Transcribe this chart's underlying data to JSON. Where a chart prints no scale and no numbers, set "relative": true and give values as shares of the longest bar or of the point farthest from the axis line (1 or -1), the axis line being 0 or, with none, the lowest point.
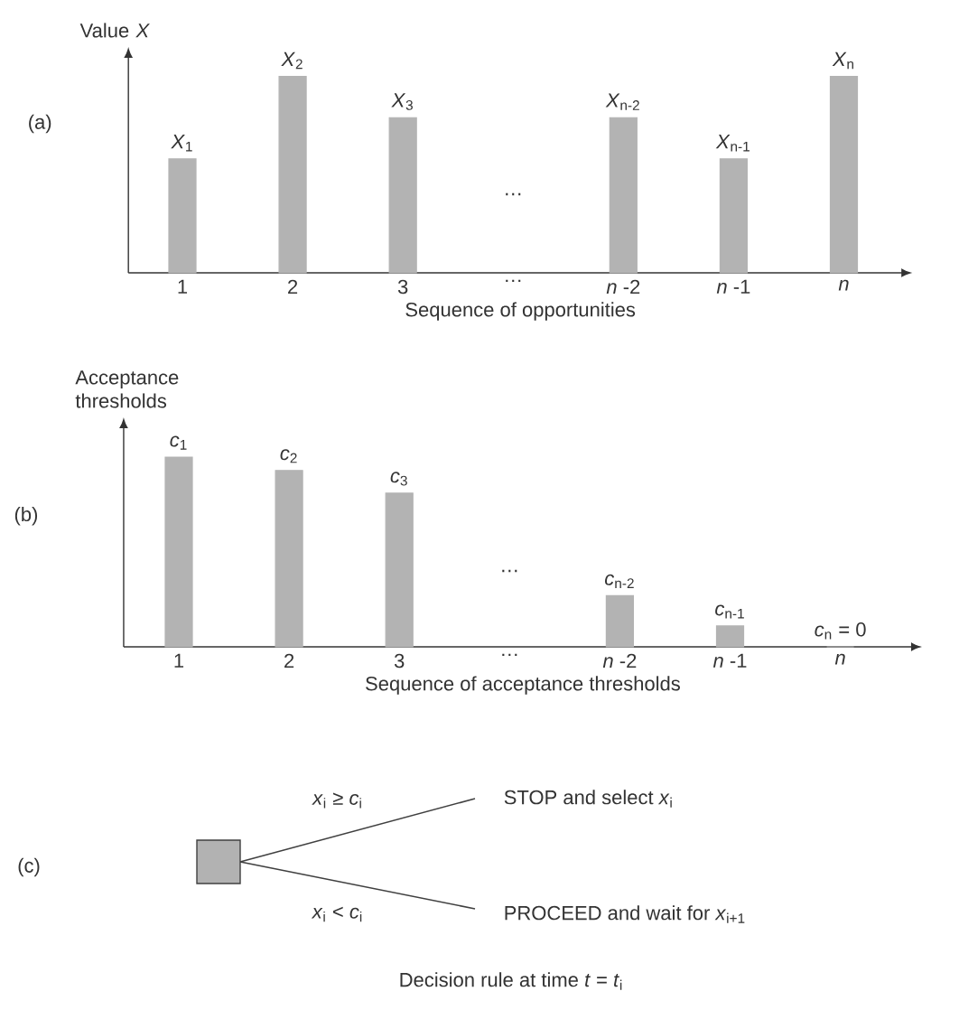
{
  "chart_data": [
    {
      "type": "bar",
      "relative": true,
      "color": "#b3b3b3",
      "ylabel": "Value *X*",
      "xlabel": "Sequence of opportunities",
      "tick_labels": "x",
      "categories": [
        "1",
        "2",
        "3",
        "…",
        "*n* -2",
        "*n* -1",
        "*n*"
      ],
      "values": [
        0.58,
        1,
        0.79,
        null,
        0.79,
        0.58,
        1
      ],
      "annotations": [
        "(a)",
        "…",
        {
          "text": "*X*$_{1}$",
          "x": "1",
          "y": 0.58
        },
        {
          "text": "*X*$_{2}$",
          "x": "2",
          "y": 1
        },
        {
          "text": "*X*$_{3}$",
          "x": "3",
          "y": 0.79
        },
        {
          "text": "*X*$_{n-2}$",
          "x": "*n* -2",
          "y": 0.79
        },
        {
          "text": "*X*$_{n-1}$",
          "x": "*n* -1",
          "y": 0.58
        },
        {
          "text": "*X*$_{n}$",
          "x": "*n*",
          "y": 1
        }
      ]
    },
    {
      "type": "bar",
      "relative": true,
      "color": "#b3b3b3",
      "ylabel": "Acceptance thresholds",
      "xlabel": "Sequence of acceptance thresholds",
      "tick_labels": "x",
      "categories": [
        "1",
        "2",
        "3",
        "…",
        "*n* -2",
        "*n* -1",
        "*n*"
      ],
      "values": [
        1,
        0.93,
        0.81,
        null,
        0.27,
        0.11,
        0
      ],
      "annotations": [
        "(b)",
        "…",
        {
          "text": "*c*$_{1}$",
          "x": "1",
          "y": 1
        },
        {
          "text": "*c*$_{2}$",
          "x": "2",
          "y": 0.93
        },
        {
          "text": "*c*$_{3}$",
          "x": "3",
          "y": 0.81
        },
        {
          "text": "*c*$_{n-2}$",
          "x": "*n* -2",
          "y": 0.27
        },
        {
          "text": "*c*$_{n-1}$",
          "x": "*n* -1",
          "y": 0.11
        },
        {
          "text": "*c*$_{n}$ = 0",
          "x": "*n*",
          "y": 0
        }
      ]
    },
    {
      "type": "other",
      "title": "Decision rule at time *t* = *t*$_{i}$",
      "annotations": [
        "(c)",
        "*x*$_{i}$ ≥ *c*$_{i}$",
        "*x*$_{i}$ < *c*$_{i}$",
        "STOP and select *x*$_{i}$",
        "PROCEED and wait for *x*$_{i+1}$"
      ]
    }
  ]
}
